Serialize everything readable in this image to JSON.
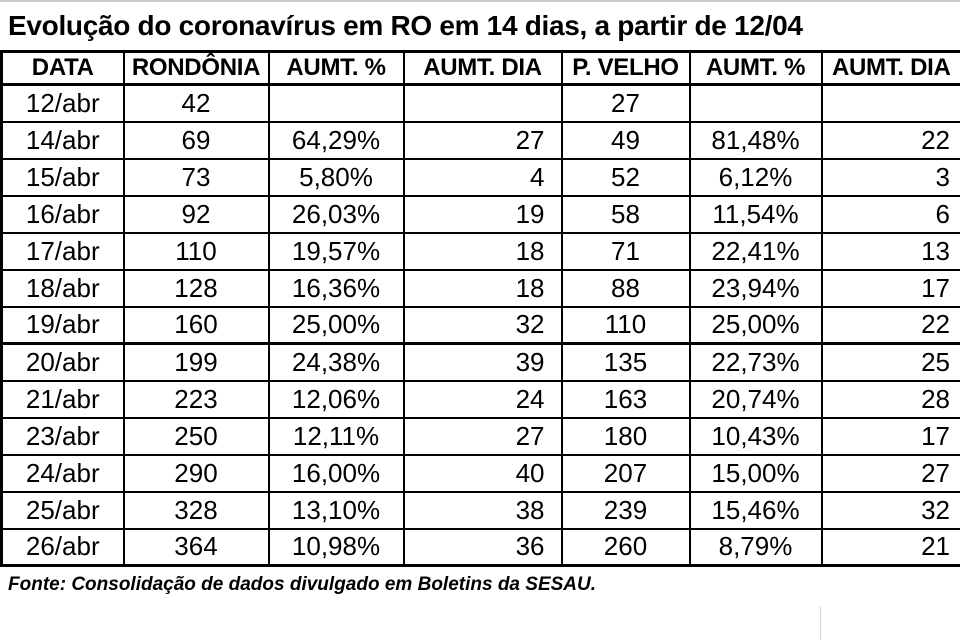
{
  "title": "Evolução do coronavírus em RO em 14 dias, a partir de 12/04",
  "source": "Fonte: Consolidação de dados divulgado em Boletins da SESAU.",
  "colors": {
    "text": "#000000",
    "background": "#ffffff",
    "table_border": "#000000",
    "top_edge_line": "#c9c9c9",
    "footer_gridline": "#d9d9d9"
  },
  "chart_data": {
    "type": "table",
    "title": "Evolução do coronavírus em RO em 14 dias, a partir de 12/04",
    "columns": [
      "DATA",
      "RONDÔNIA",
      "AUMT. %",
      "AUMT. DIA",
      "P. VELHO",
      "AUMT. %",
      "AUMT. DIA"
    ],
    "rows": [
      [
        "12/abr",
        "42",
        "",
        "",
        "27",
        "",
        ""
      ],
      [
        "14/abr",
        "69",
        "64,29%",
        "27",
        "49",
        "81,48%",
        "22"
      ],
      [
        "15/abr",
        "73",
        "5,80%",
        "4",
        "52",
        "6,12%",
        "3"
      ],
      [
        "16/abr",
        "92",
        "26,03%",
        "19",
        "58",
        "11,54%",
        "6"
      ],
      [
        "17/abr",
        "110",
        "19,57%",
        "18",
        "71",
        "22,41%",
        "13"
      ],
      [
        "18/abr",
        "128",
        "16,36%",
        "18",
        "88",
        "23,94%",
        "17"
      ],
      [
        "19/abr",
        "160",
        "25,00%",
        "32",
        "110",
        "25,00%",
        "22"
      ],
      [
        "20/abr",
        "199",
        "24,38%",
        "39",
        "135",
        "22,73%",
        "25"
      ],
      [
        "21/abr",
        "223",
        "12,06%",
        "24",
        "163",
        "20,74%",
        "28"
      ],
      [
        "23/abr",
        "250",
        "12,11%",
        "27",
        "180",
        "10,43%",
        "17"
      ],
      [
        "24/abr",
        "290",
        "16,00%",
        "40",
        "207",
        "15,00%",
        "27"
      ],
      [
        "25/abr",
        "328",
        "13,10%",
        "38",
        "239",
        "15,46%",
        "32"
      ],
      [
        "26/abr",
        "364",
        "10,98%",
        "36",
        "260",
        "8,79%",
        "21"
      ]
    ],
    "source": "Fonte: Consolidação de dados divulgado em Boletins da SESAU."
  }
}
